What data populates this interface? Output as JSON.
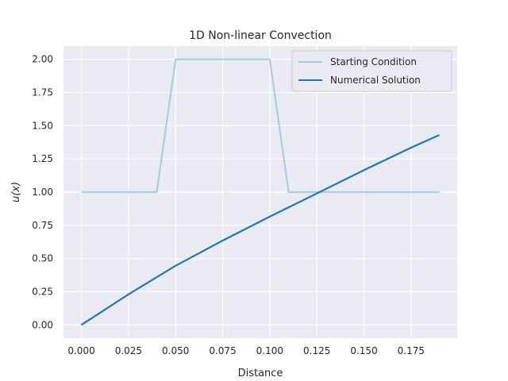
{
  "chart_data": {
    "type": "line",
    "title": "1D Non-linear Convection",
    "xlabel": "Distance",
    "ylabel": "u(x)",
    "xlim": [
      -0.0095,
      0.1995
    ],
    "ylim": [
      -0.1,
      2.1
    ],
    "xticks": [
      "0.000",
      "0.025",
      "0.050",
      "0.075",
      "0.100",
      "0.125",
      "0.150",
      "0.175"
    ],
    "yticks": [
      "0.00",
      "0.25",
      "0.50",
      "0.75",
      "1.00",
      "1.25",
      "1.50",
      "1.75",
      "2.00"
    ],
    "grid": true,
    "legend_position": "top-right",
    "background_color": "#eaeaf2",
    "series": [
      {
        "name": "Starting Condition",
        "color": "#a6cee3",
        "x": [
          0.0,
          0.04,
          0.05,
          0.1,
          0.11,
          0.19
        ],
        "y": [
          1.0,
          1.0,
          2.0,
          2.0,
          1.0,
          1.0
        ]
      },
      {
        "name": "Numerical Solution",
        "color": "#1f78b4",
        "x": [
          0.0,
          0.025,
          0.05,
          0.075,
          0.1,
          0.125,
          0.15,
          0.175,
          0.19
        ],
        "y": [
          0.0,
          0.23,
          0.445,
          0.635,
          0.815,
          0.99,
          1.165,
          1.335,
          1.43
        ]
      }
    ]
  }
}
